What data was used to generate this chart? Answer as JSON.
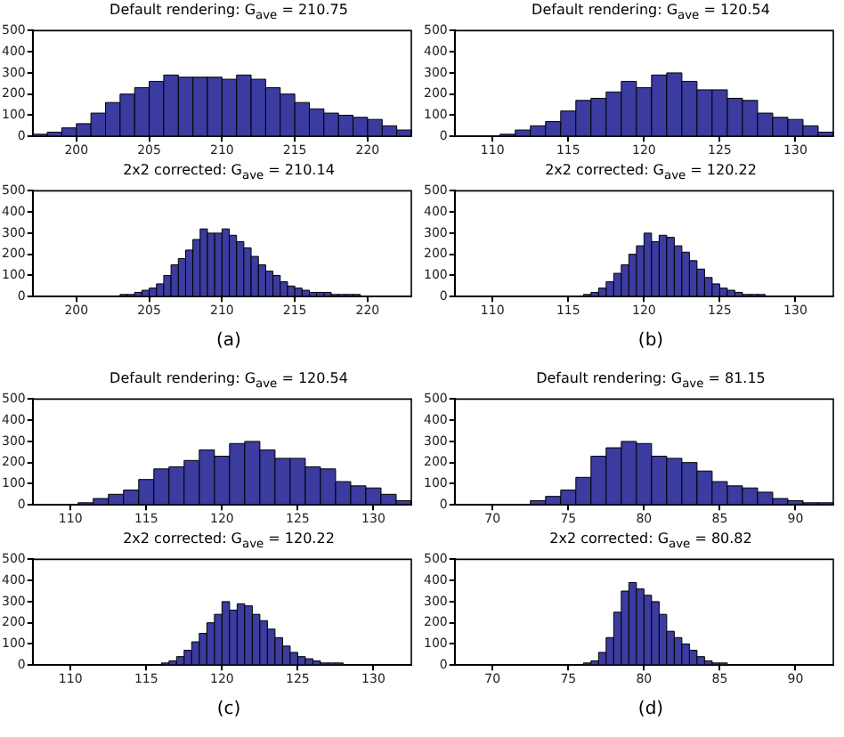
{
  "chart_data": [
    {
      "type": "histogram",
      "title": "Default rendering: G$_{ave}$ = 210.75",
      "color": "#3b3ba0",
      "xlim": [
        197,
        223
      ],
      "xticks": [
        200,
        205,
        210,
        215,
        220
      ],
      "ylim": [
        0,
        500
      ],
      "yticks": [
        0,
        100,
        200,
        300,
        400,
        500
      ],
      "bins": [
        197,
        198,
        199,
        200,
        201,
        202,
        203,
        204,
        205,
        206,
        207,
        208,
        209,
        210,
        211,
        212,
        213,
        214,
        215,
        216,
        217,
        218,
        219,
        220,
        221,
        222,
        223
      ],
      "values": [
        10,
        20,
        40,
        60,
        110,
        160,
        200,
        230,
        260,
        290,
        280,
        280,
        280,
        270,
        290,
        270,
        230,
        200,
        160,
        130,
        110,
        100,
        90,
        80,
        50,
        30
      ]
    },
    {
      "type": "histogram",
      "title": "2x2 corrected: G$_{ave}$ = 210.14",
      "color": "#3b3ba0",
      "xlim": [
        197,
        223
      ],
      "xticks": [
        200,
        205,
        210,
        215,
        220
      ],
      "ylim": [
        0,
        500
      ],
      "yticks": [
        0,
        100,
        200,
        300,
        400,
        500
      ],
      "annotations": [
        "(a)"
      ],
      "bins": [
        203,
        203.5,
        204,
        204.5,
        205,
        205.5,
        206,
        206.5,
        207,
        207.5,
        208,
        208.5,
        209,
        209.5,
        210,
        210.5,
        211,
        211.5,
        212,
        212.5,
        213,
        213.5,
        214,
        214.5,
        215,
        215.5,
        216,
        216.5,
        217,
        217.5,
        218,
        218.5,
        219,
        219.5
      ],
      "values": [
        10,
        10,
        20,
        30,
        40,
        60,
        100,
        150,
        180,
        220,
        270,
        320,
        300,
        300,
        320,
        290,
        260,
        230,
        190,
        150,
        120,
        100,
        70,
        50,
        40,
        30,
        20,
        20,
        20,
        10,
        10,
        10,
        10
      ]
    },
    {
      "type": "histogram",
      "title": "Default rendering: G$_{ave}$ = 120.54",
      "color": "#3b3ba0",
      "xlim": [
        107.5,
        132.5
      ],
      "xticks": [
        110,
        115,
        120,
        125,
        130
      ],
      "ylim": [
        0,
        500
      ],
      "yticks": [
        0,
        100,
        200,
        300,
        400,
        500
      ],
      "bins": [
        110.5,
        111.5,
        112.5,
        113.5,
        114.5,
        115.5,
        116.5,
        117.5,
        118.5,
        119.5,
        120.5,
        121.5,
        122.5,
        123.5,
        124.5,
        125.5,
        126.5,
        127.5,
        128.5,
        129.5,
        130.5,
        131.5,
        132.5
      ],
      "values": [
        10,
        30,
        50,
        70,
        120,
        170,
        180,
        210,
        260,
        230,
        290,
        300,
        260,
        220,
        220,
        180,
        170,
        110,
        90,
        80,
        50,
        20
      ]
    },
    {
      "type": "histogram",
      "title": "2x2 corrected: G$_{ave}$ = 120.22",
      "color": "#3b3ba0",
      "xlim": [
        107.5,
        132.5
      ],
      "xticks": [
        110,
        115,
        120,
        125,
        130
      ],
      "ylim": [
        0,
        500
      ],
      "yticks": [
        0,
        100,
        200,
        300,
        400,
        500
      ],
      "annotations": [
        "(b)"
      ],
      "bins": [
        116,
        116.5,
        117,
        117.5,
        118,
        118.5,
        119,
        119.5,
        120,
        120.5,
        121,
        121.5,
        122,
        122.5,
        123,
        123.5,
        124,
        124.5,
        125,
        125.5,
        126,
        126.5,
        127,
        127.5,
        128
      ],
      "values": [
        10,
        20,
        40,
        70,
        110,
        150,
        200,
        240,
        300,
        260,
        290,
        280,
        240,
        210,
        170,
        130,
        90,
        60,
        40,
        30,
        20,
        10,
        10,
        10
      ]
    },
    {
      "type": "histogram",
      "title": "Default rendering: G$_{ave}$ = 120.54",
      "color": "#3b3ba0",
      "xlim": [
        107.5,
        132.5
      ],
      "xticks": [
        110,
        115,
        120,
        125,
        130
      ],
      "ylim": [
        0,
        500
      ],
      "yticks": [
        0,
        100,
        200,
        300,
        400,
        500
      ],
      "bins": [
        110.5,
        111.5,
        112.5,
        113.5,
        114.5,
        115.5,
        116.5,
        117.5,
        118.5,
        119.5,
        120.5,
        121.5,
        122.5,
        123.5,
        124.5,
        125.5,
        126.5,
        127.5,
        128.5,
        129.5,
        130.5,
        131.5,
        132.5
      ],
      "values": [
        10,
        30,
        50,
        70,
        120,
        170,
        180,
        210,
        260,
        230,
        290,
        300,
        260,
        220,
        220,
        180,
        170,
        110,
        90,
        80,
        50,
        20
      ]
    },
    {
      "type": "histogram",
      "title": "2x2 corrected: G$_{ave}$ = 120.22",
      "color": "#3b3ba0",
      "xlim": [
        107.5,
        132.5
      ],
      "xticks": [
        110,
        115,
        120,
        125,
        130
      ],
      "ylim": [
        0,
        500
      ],
      "yticks": [
        0,
        100,
        200,
        300,
        400,
        500
      ],
      "annotations": [
        "(c)"
      ],
      "bins": [
        116,
        116.5,
        117,
        117.5,
        118,
        118.5,
        119,
        119.5,
        120,
        120.5,
        121,
        121.5,
        122,
        122.5,
        123,
        123.5,
        124,
        124.5,
        125,
        125.5,
        126,
        126.5,
        127,
        127.5,
        128
      ],
      "values": [
        10,
        20,
        40,
        70,
        110,
        150,
        200,
        240,
        300,
        260,
        290,
        280,
        240,
        210,
        170,
        130,
        90,
        60,
        40,
        30,
        20,
        10,
        10,
        10
      ]
    },
    {
      "type": "histogram",
      "title": "Default rendering: G$_{ave}$ = 81.15",
      "color": "#3b3ba0",
      "xlim": [
        67.5,
        92.5
      ],
      "xticks": [
        70,
        75,
        80,
        85,
        90
      ],
      "ylim": [
        0,
        500
      ],
      "yticks": [
        0,
        100,
        200,
        300,
        400,
        500
      ],
      "bins": [
        72.5,
        73.5,
        74.5,
        75.5,
        76.5,
        77.5,
        78.5,
        79.5,
        80.5,
        81.5,
        82.5,
        83.5,
        84.5,
        85.5,
        86.5,
        87.5,
        88.5,
        89.5,
        90.5,
        91.5,
        92.5
      ],
      "values": [
        20,
        40,
        70,
        130,
        230,
        270,
        300,
        290,
        230,
        220,
        200,
        160,
        110,
        90,
        80,
        60,
        30,
        20,
        10,
        10
      ]
    },
    {
      "type": "histogram",
      "title": "2x2 corrected: G$_{ave}$ = 80.82",
      "color": "#3b3ba0",
      "xlim": [
        67.5,
        92.5
      ],
      "xticks": [
        70,
        75,
        80,
        85,
        90
      ],
      "ylim": [
        0,
        500
      ],
      "yticks": [
        0,
        100,
        200,
        300,
        400,
        500
      ],
      "annotations": [
        "(d)"
      ],
      "bins": [
        76,
        76.5,
        77,
        77.5,
        78,
        78.5,
        79,
        79.5,
        80,
        80.5,
        81,
        81.5,
        82,
        82.5,
        83,
        83.5,
        84,
        84.5,
        85,
        85.5
      ],
      "values": [
        10,
        20,
        60,
        130,
        250,
        350,
        390,
        360,
        330,
        300,
        240,
        160,
        130,
        100,
        70,
        40,
        20,
        10,
        10
      ]
    }
  ]
}
